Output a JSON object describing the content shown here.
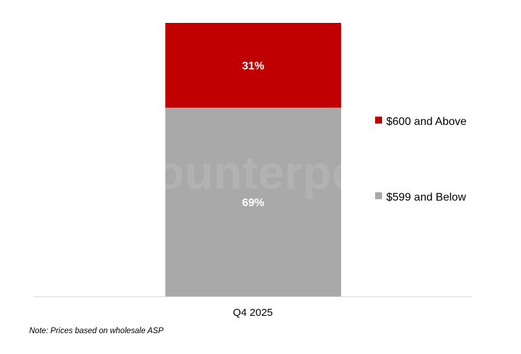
{
  "chart_data": {
    "type": "bar",
    "stacked": true,
    "categories": [
      "Q4 2025"
    ],
    "series": [
      {
        "name": "$599 and Below",
        "values": [
          69
        ],
        "color": "#a9a9a9",
        "data_labels": [
          "69%"
        ]
      },
      {
        "name": "$600 and Above",
        "values": [
          31
        ],
        "color": "#c00000",
        "data_labels": [
          "31%"
        ]
      }
    ],
    "ylim": [
      0,
      100
    ],
    "grid": false,
    "legend_placement": "right",
    "note": "Note: Prices based on wholesale ASP",
    "watermark": "Counterpoint"
  }
}
